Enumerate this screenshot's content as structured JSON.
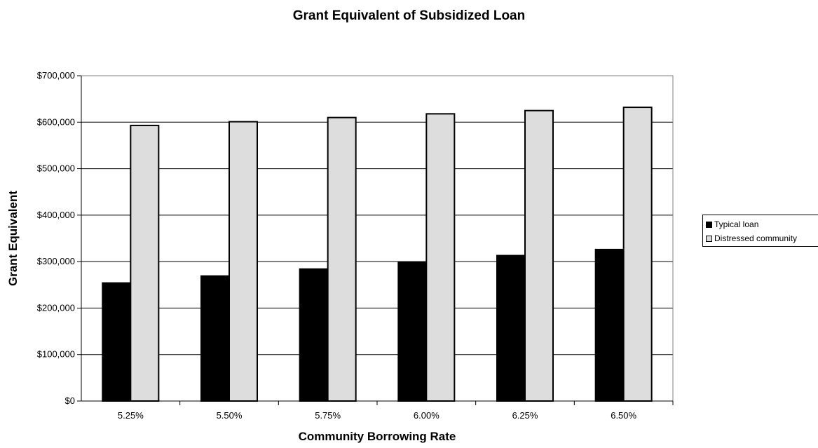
{
  "chart_data": {
    "type": "bar",
    "title": "Grant Equivalent of Subsidized Loan",
    "xlabel": "Community Borrowing Rate",
    "ylabel": "Grant Equivalent",
    "categories": [
      "5.25%",
      "5.50%",
      "5.75%",
      "6.00%",
      "6.25%",
      "6.50%"
    ],
    "series": [
      {
        "name": "Typical loan",
        "color": "#000000",
        "values": [
          254000,
          269000,
          284000,
          299000,
          313000,
          326000
        ]
      },
      {
        "name": "Distressed community",
        "color": "#dddddd",
        "values": [
          593000,
          601000,
          610000,
          618000,
          625000,
          632000
        ]
      }
    ],
    "ylim": [
      0,
      700000
    ],
    "yticks": [
      "$0",
      "$100,000",
      "$200,000",
      "$300,000",
      "$400,000",
      "$500,000",
      "$600,000",
      "$700,000"
    ],
    "grid": "horizontal",
    "legend_position": "right"
  }
}
